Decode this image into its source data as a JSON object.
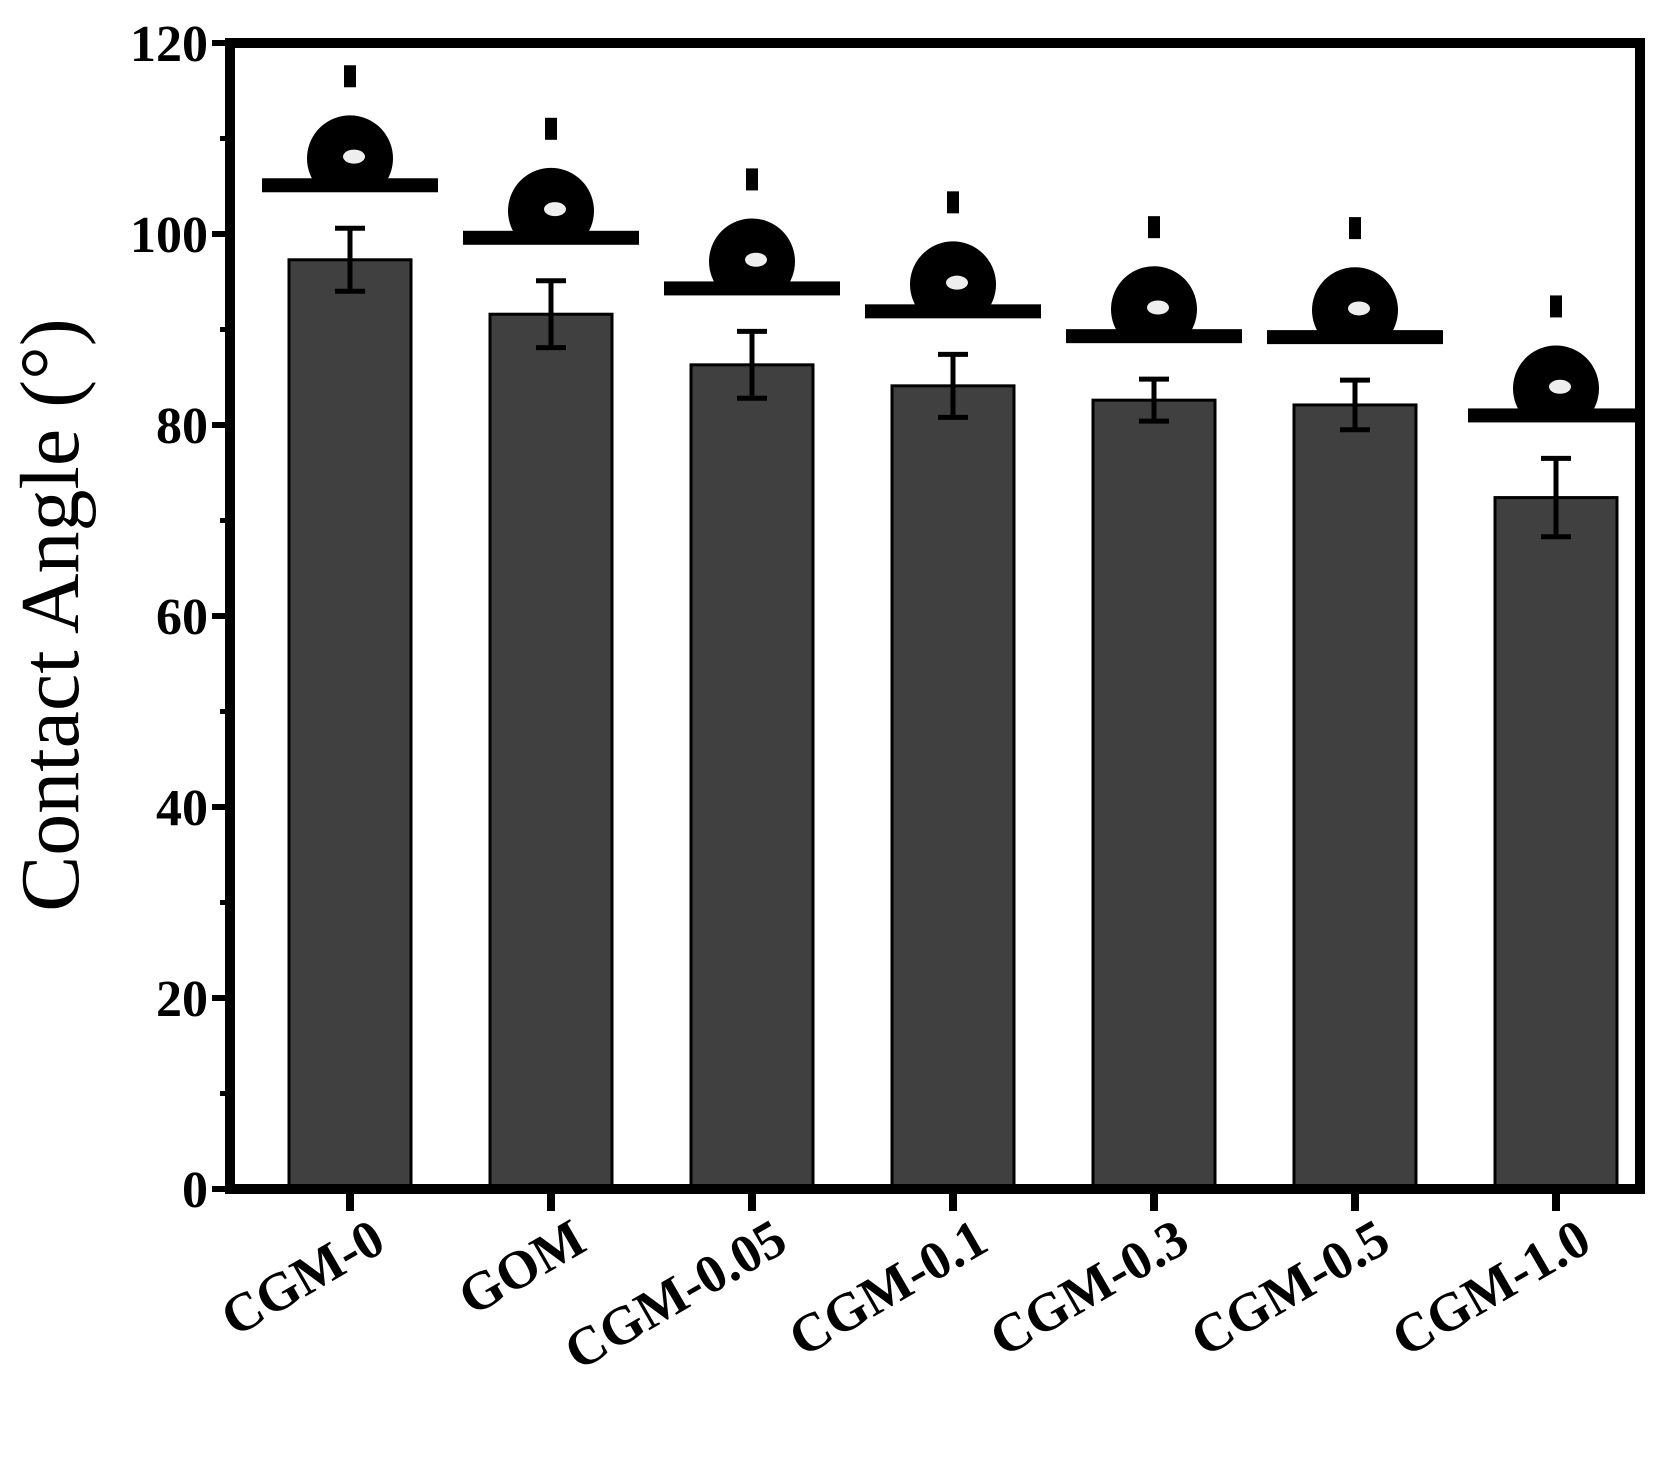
{
  "chart_data": {
    "type": "bar",
    "title": "",
    "xlabel": "",
    "ylabel": "Contact Angle (°)",
    "ylim": [
      0,
      120
    ],
    "yticks": [
      0,
      20,
      40,
      60,
      80,
      100,
      120
    ],
    "categories": [
      "CGM-0",
      "GOM",
      "CGM-0.05",
      "CGM-0.1",
      "CGM-0.3",
      "CGM-0.5",
      "CGM-1.0"
    ],
    "values": [
      97.3,
      91.6,
      86.3,
      84.1,
      82.6,
      82.1,
      72.4
    ],
    "errors": [
      3.3,
      3.5,
      3.5,
      3.3,
      2.2,
      2.6,
      4.1
    ],
    "bar_color": "#404040",
    "annotations": "water droplet images above each bar",
    "grid": false
  }
}
